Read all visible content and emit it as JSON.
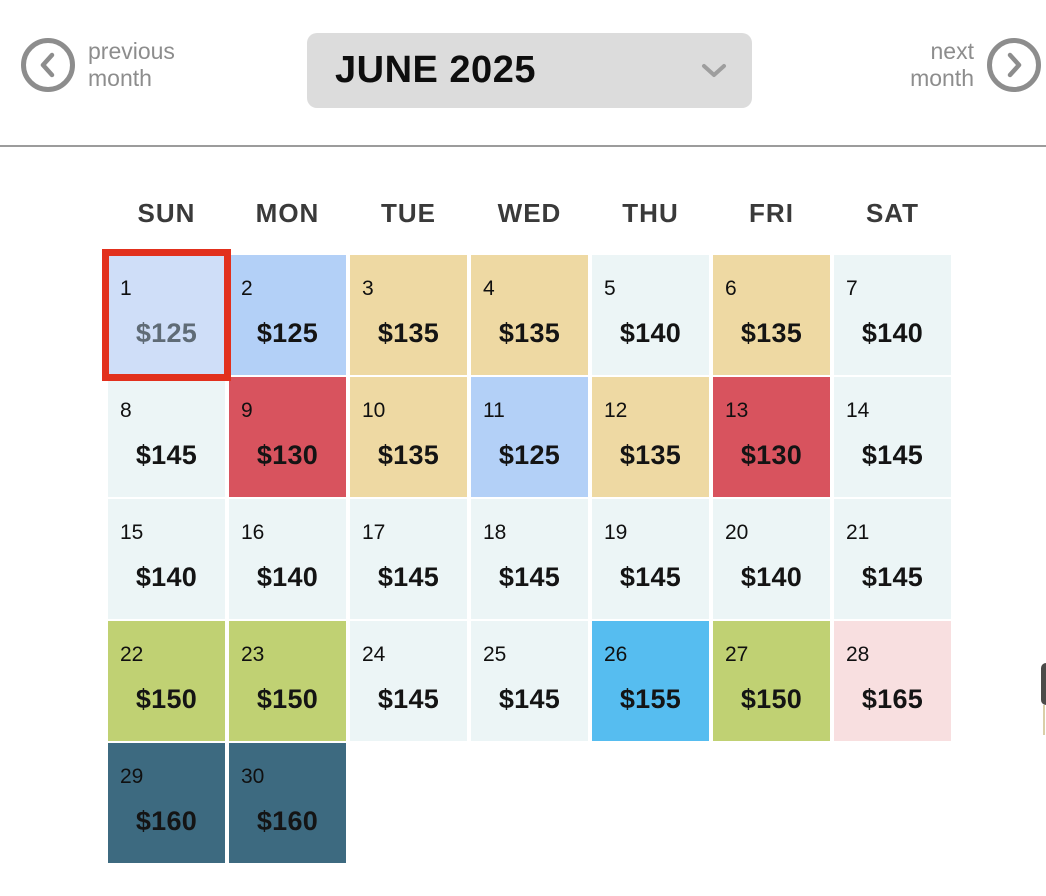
{
  "header": {
    "previous_button": {
      "label_line1": "previous",
      "label_line2": "month"
    },
    "month_selector": {
      "value": "JUNE 2025"
    },
    "next_button": {
      "label_line1": "next",
      "label_line2": "month"
    }
  },
  "calendar": {
    "weekdays": [
      "SUN",
      "MON",
      "TUE",
      "WED",
      "THU",
      "FRI",
      "SAT"
    ],
    "days": [
      {
        "day": "1",
        "price": "$125",
        "color": "selected_blue",
        "selected": true,
        "muted_price": true
      },
      {
        "day": "2",
        "price": "$125",
        "color": "blue"
      },
      {
        "day": "3",
        "price": "$135",
        "color": "tan"
      },
      {
        "day": "4",
        "price": "$135",
        "color": "tan"
      },
      {
        "day": "5",
        "price": "$140",
        "color": "pale"
      },
      {
        "day": "6",
        "price": "$135",
        "color": "tan"
      },
      {
        "day": "7",
        "price": "$140",
        "color": "pale"
      },
      {
        "day": "8",
        "price": "$145",
        "color": "pale"
      },
      {
        "day": "9",
        "price": "$130",
        "color": "red"
      },
      {
        "day": "10",
        "price": "$135",
        "color": "tan"
      },
      {
        "day": "11",
        "price": "$125",
        "color": "blue"
      },
      {
        "day": "12",
        "price": "$135",
        "color": "tan"
      },
      {
        "day": "13",
        "price": "$130",
        "color": "red"
      },
      {
        "day": "14",
        "price": "$145",
        "color": "pale"
      },
      {
        "day": "15",
        "price": "$140",
        "color": "pale"
      },
      {
        "day": "16",
        "price": "$140",
        "color": "pale"
      },
      {
        "day": "17",
        "price": "$145",
        "color": "pale"
      },
      {
        "day": "18",
        "price": "$145",
        "color": "pale"
      },
      {
        "day": "19",
        "price": "$145",
        "color": "pale"
      },
      {
        "day": "20",
        "price": "$140",
        "color": "pale"
      },
      {
        "day": "21",
        "price": "$145",
        "color": "pale"
      },
      {
        "day": "22",
        "price": "$150",
        "color": "green"
      },
      {
        "day": "23",
        "price": "$150",
        "color": "green"
      },
      {
        "day": "24",
        "price": "$145",
        "color": "pale"
      },
      {
        "day": "25",
        "price": "$145",
        "color": "pale"
      },
      {
        "day": "26",
        "price": "$155",
        "color": "cyan"
      },
      {
        "day": "27",
        "price": "$150",
        "color": "green"
      },
      {
        "day": "28",
        "price": "$165",
        "color": "pink"
      },
      {
        "day": "29",
        "price": "$160",
        "color": "teal"
      },
      {
        "day": "30",
        "price": "$160",
        "color": "teal"
      }
    ]
  },
  "palette": {
    "selected_blue": "#cfdef8",
    "blue": "#b3d0f7",
    "tan": "#eed9a3",
    "pale": "#ecf5f6",
    "red": "#d8535e",
    "green": "#c0d173",
    "cyan": "#56bdf0",
    "pink": "#f8dfe0",
    "teal": "#3d6a80",
    "selected_border": "#e2301d"
  },
  "icons": {
    "previous": "chevron-left-circle",
    "next": "chevron-right-circle",
    "month_dropdown": "chevron-down"
  }
}
